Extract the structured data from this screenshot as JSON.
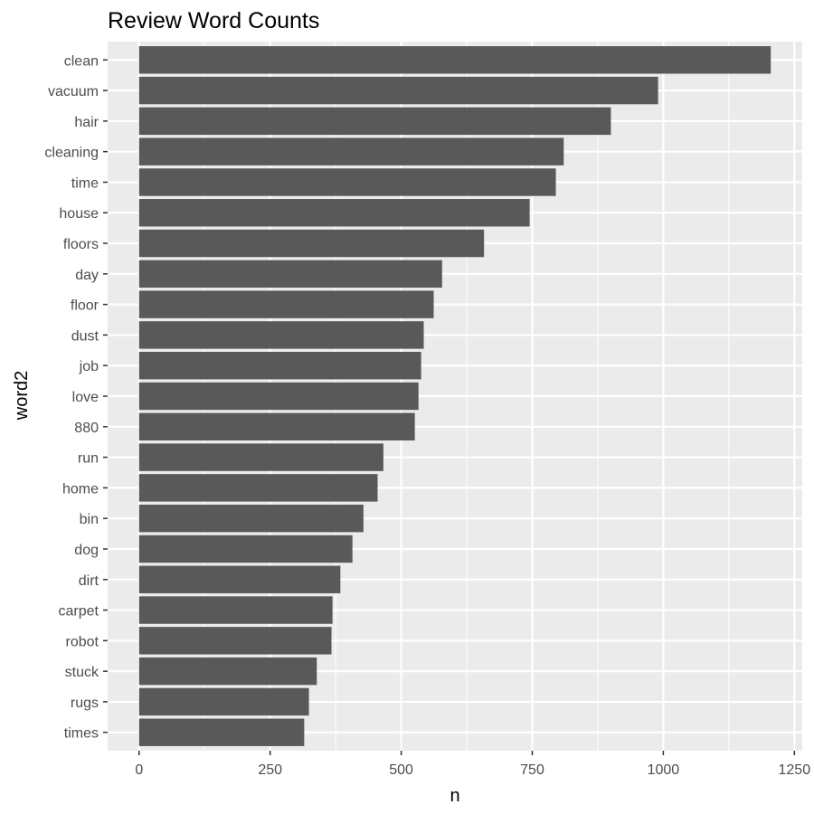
{
  "chart_data": {
    "type": "bar",
    "orientation": "horizontal",
    "title": "Review Word Counts",
    "xlabel": "n",
    "ylabel": "word2",
    "categories": [
      "clean",
      "vacuum",
      "hair",
      "cleaning",
      "time",
      "house",
      "floors",
      "day",
      "floor",
      "dust",
      "job",
      "love",
      "880",
      "run",
      "home",
      "bin",
      "dog",
      "dirt",
      "carpet",
      "robot",
      "stuck",
      "rugs",
      "times"
    ],
    "values": [
      1205,
      990,
      900,
      810,
      795,
      745,
      658,
      578,
      562,
      543,
      538,
      533,
      526,
      466,
      455,
      428,
      407,
      384,
      369,
      367,
      339,
      324,
      315
    ],
    "xlim": [
      -60,
      1265
    ],
    "xticks": [
      0,
      250,
      500,
      750,
      1000,
      1250
    ],
    "xtick_labels": [
      "0",
      "250",
      "500",
      "750",
      "1000",
      "1250"
    ],
    "grid": true,
    "colors": {
      "bar": "#595959",
      "panel": "#ebebeb",
      "grid": "#ffffff"
    }
  }
}
